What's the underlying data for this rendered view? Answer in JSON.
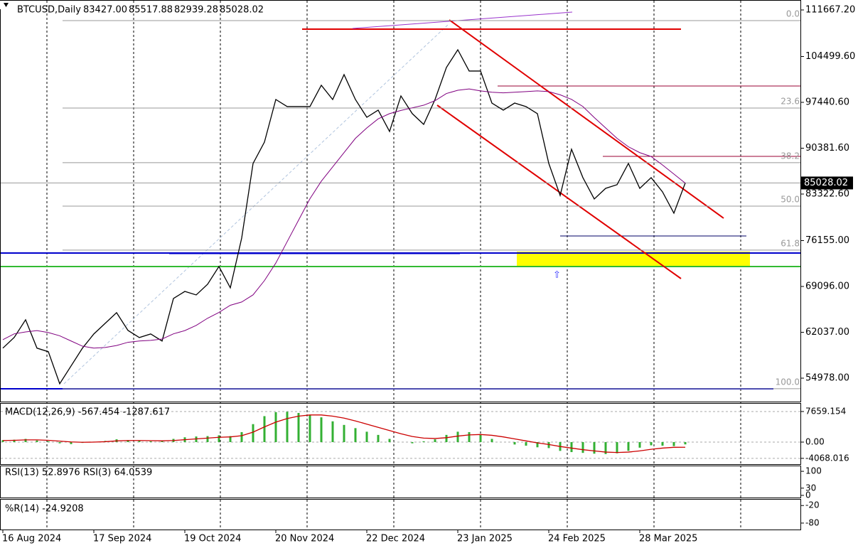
{
  "header": {
    "symbol": "BTCUSD,Daily",
    "open": "83427.00",
    "high": "85517.88",
    "low": "82939.28",
    "close": "85028.02"
  },
  "chart_data": [
    {
      "type": "line",
      "categories": [
        "16 Aug 2024",
        null,
        null,
        null,
        null,
        null,
        null,
        null,
        "17 Sep 2024",
        null,
        null,
        null,
        null,
        null,
        null,
        null,
        "19 Oct 2024",
        null,
        null,
        null,
        null,
        null,
        null,
        null,
        "20 Nov 2024",
        null,
        null,
        null,
        null,
        null,
        null,
        null,
        "22 Dec 2024",
        null,
        null,
        null,
        null,
        null,
        null,
        null,
        "23 Jan 2025",
        null,
        null,
        null,
        null,
        null,
        null,
        null,
        "24 Feb 2025",
        null,
        null,
        null,
        null,
        null,
        null,
        null,
        "28 Mar 2025",
        null,
        null,
        null,
        null
      ],
      "series": [
        {
          "color": "#000000",
          "values": [
            59600,
            61250,
            63970,
            59600,
            59050,
            54120,
            56860,
            59600,
            61780,
            63420,
            65060,
            62330,
            61230,
            61780,
            60690,
            67240,
            68330,
            67790,
            69430,
            72170,
            68890,
            76550,
            88040,
            91320,
            97880,
            96790,
            96790,
            96790,
            100070,
            97880,
            101710,
            97880,
            95140,
            96240,
            92960,
            98430,
            95700,
            94050,
            97880,
            102810,
            105540,
            102260,
            102260,
            97330,
            96240,
            97330,
            96790,
            95700,
            88040,
            83110,
            90220,
            85850,
            82560,
            84200,
            84760,
            88040,
            84200,
            85850,
            83660,
            80380,
            85028.02
          ]
        },
        {
          "color": "#800080",
          "values": [
            60900,
            61800,
            62100,
            62300,
            62000,
            61500,
            60700,
            59900,
            59600,
            59700,
            60000,
            60500,
            60700,
            60800,
            61000,
            61800,
            62300,
            63100,
            64200,
            65100,
            66200,
            66700,
            67800,
            70000,
            72700,
            76000,
            79300,
            82600,
            85300,
            87500,
            89700,
            91900,
            93500,
            94900,
            95700,
            96200,
            96600,
            97000,
            97700,
            98800,
            99300,
            99500,
            99200,
            99000,
            98900,
            99000,
            99100,
            99200,
            99100,
            98600,
            97900,
            96800,
            95100,
            93500,
            91900,
            90600,
            89700,
            89100,
            87800,
            86400,
            85000
          ]
        }
      ],
      "ylim": [
        51370,
        112980
      ],
      "yticks": [
        {
          "value": 111667.2,
          "label": "111667.20"
        },
        {
          "value": 104499.6,
          "label": "104499.60"
        },
        {
          "value": 97440.6,
          "label": "97440.60"
        },
        {
          "value": 90381.6,
          "label": "90381.60"
        },
        {
          "value": 83322.6,
          "label": "83322.60"
        },
        {
          "value": 76155,
          "label": "76155.00"
        },
        {
          "value": 69096,
          "label": "69096.00"
        },
        {
          "value": 62037,
          "label": "62037.00"
        },
        {
          "value": 54978,
          "label": "54978.00"
        }
      ],
      "last_price": {
        "value": 85028.02,
        "label": "85028.02"
      },
      "fib_levels": [
        {
          "value": 110030,
          "label": "0.0"
        },
        {
          "value": 96570,
          "label": "23.6"
        },
        {
          "value": 88150,
          "label": "38.2"
        },
        {
          "value": 81470,
          "label": "50.0"
        },
        {
          "value": 74690,
          "label": "61.8"
        },
        {
          "value": 53360,
          "label": "100.0"
        }
      ]
    },
    {
      "type": "bar",
      "title": "MACD(12,26,9) -567.454 -1287.617",
      "color": "#33b033",
      "values": [
        500,
        600,
        800,
        400,
        200,
        -300,
        -500,
        -200,
        100,
        300,
        700,
        500,
        300,
        200,
        300,
        800,
        1200,
        1400,
        1500,
        1700,
        1500,
        2500,
        4500,
        6500,
        7500,
        7600,
        7300,
        6800,
        6200,
        5200,
        4300,
        3500,
        2600,
        1800,
        800,
        0,
        -300,
        200,
        700,
        1800,
        2600,
        2500,
        1800,
        800,
        0,
        -600,
        -900,
        -1300,
        -1500,
        -2200,
        -2500,
        -2700,
        -2900,
        -3000,
        -2800,
        -2200,
        -1400,
        -800,
        -900,
        -1000,
        -567.454
      ],
      "signal": {
        "color": "#cc0000",
        "values": [
          400,
          450,
          550,
          550,
          450,
          250,
          50,
          -50,
          0,
          100,
          300,
          400,
          400,
          350,
          320,
          400,
          600,
          800,
          1000,
          1200,
          1300,
          1600,
          2500,
          3800,
          5000,
          5900,
          6500,
          6800,
          6800,
          6500,
          6000,
          5300,
          4500,
          3700,
          2900,
          2100,
          1400,
          1000,
          900,
          1100,
          1500,
          1800,
          1900,
          1700,
          1300,
          800,
          300,
          -200,
          -600,
          -1100,
          -1500,
          -1900,
          -2200,
          -2500,
          -2600,
          -2500,
          -2200,
          -1800,
          -1500,
          -1300,
          -1287.617
        ]
      },
      "ylim": [
        -5518,
        9612
      ],
      "yticks": [
        {
          "value": 7659.154,
          "label": "7659.154"
        },
        {
          "value": 0,
          "label": "0.00"
        },
        {
          "value": -4068.016,
          "label": "-4068.016"
        }
      ]
    },
    {
      "type": "line",
      "title": "RSI(13) 52.8976 RSI(3) 64.0539",
      "ylim": [
        -9,
        121
      ],
      "yticks": [
        100,
        30,
        0
      ]
    },
    {
      "type": "line",
      "title": "%R(14) -24.9208",
      "ylim": [
        -102,
        0
      ],
      "yticks": [
        -20,
        -80
      ]
    }
  ]
}
